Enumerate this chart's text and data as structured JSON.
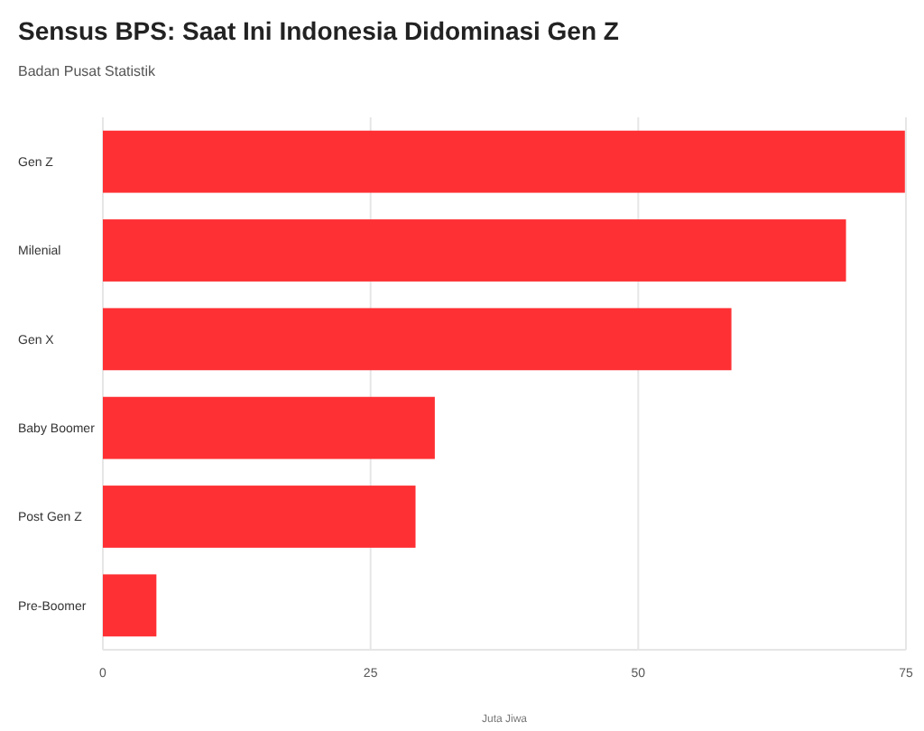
{
  "chart_data": {
    "type": "bar",
    "orientation": "horizontal",
    "title": "Sensus BPS: Saat Ini Indonesia Didominasi Gen Z",
    "subtitle": "Badan Pusat Statistik",
    "xlabel": "Juta Jiwa",
    "categories": [
      "Gen Z",
      "Milenial",
      "Gen X",
      "Baby Boomer",
      "Post Gen Z",
      "Pre-Boomer"
    ],
    "values": [
      74.9,
      69.4,
      58.7,
      31.0,
      29.2,
      5.0
    ],
    "color": "#fe3034",
    "xlim": [
      0,
      75
    ],
    "xticks": [
      0,
      25,
      50,
      75
    ],
    "grid": "x"
  }
}
